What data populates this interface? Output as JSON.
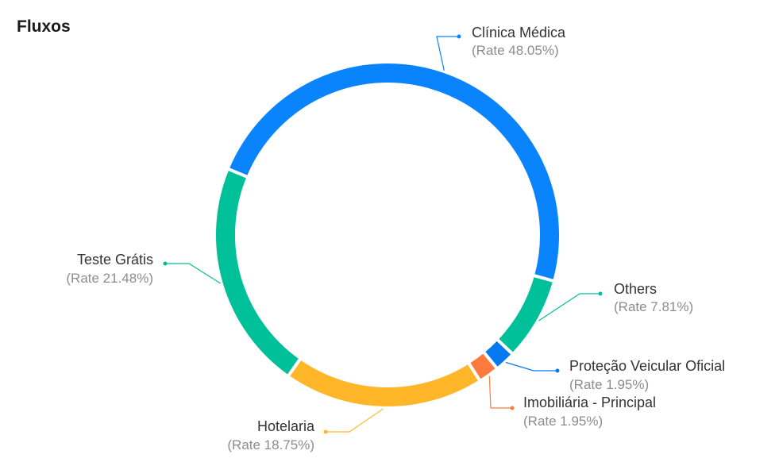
{
  "header": {
    "title": "Fluxos"
  },
  "chart_data": {
    "type": "pie",
    "variant": "donut",
    "title": "Fluxos",
    "series": [
      {
        "name": "Clínica Médica",
        "rate_label": "(Rate 48.05%)",
        "value": 48.05,
        "color": "#0984fc"
      },
      {
        "name": "Others",
        "rate_label": "(Rate 7.81%)",
        "value": 7.81,
        "color": "#00c099"
      },
      {
        "name": "Proteção Veicular Oficial",
        "rate_label": "(Rate 1.95%)",
        "value": 1.95,
        "color": "#0479f0"
      },
      {
        "name": "Imobiliária - Principal",
        "rate_label": "(Rate 1.95%)",
        "value": 1.95,
        "color": "#ff7a3f"
      },
      {
        "name": "Hotelaria",
        "rate_label": "(Rate 18.75%)",
        "value": 18.75,
        "color": "#ffb729"
      },
      {
        "name": "Teste Grátis",
        "rate_label": "(Rate 21.48%)",
        "value": 21.48,
        "color": "#00c099"
      }
    ]
  }
}
